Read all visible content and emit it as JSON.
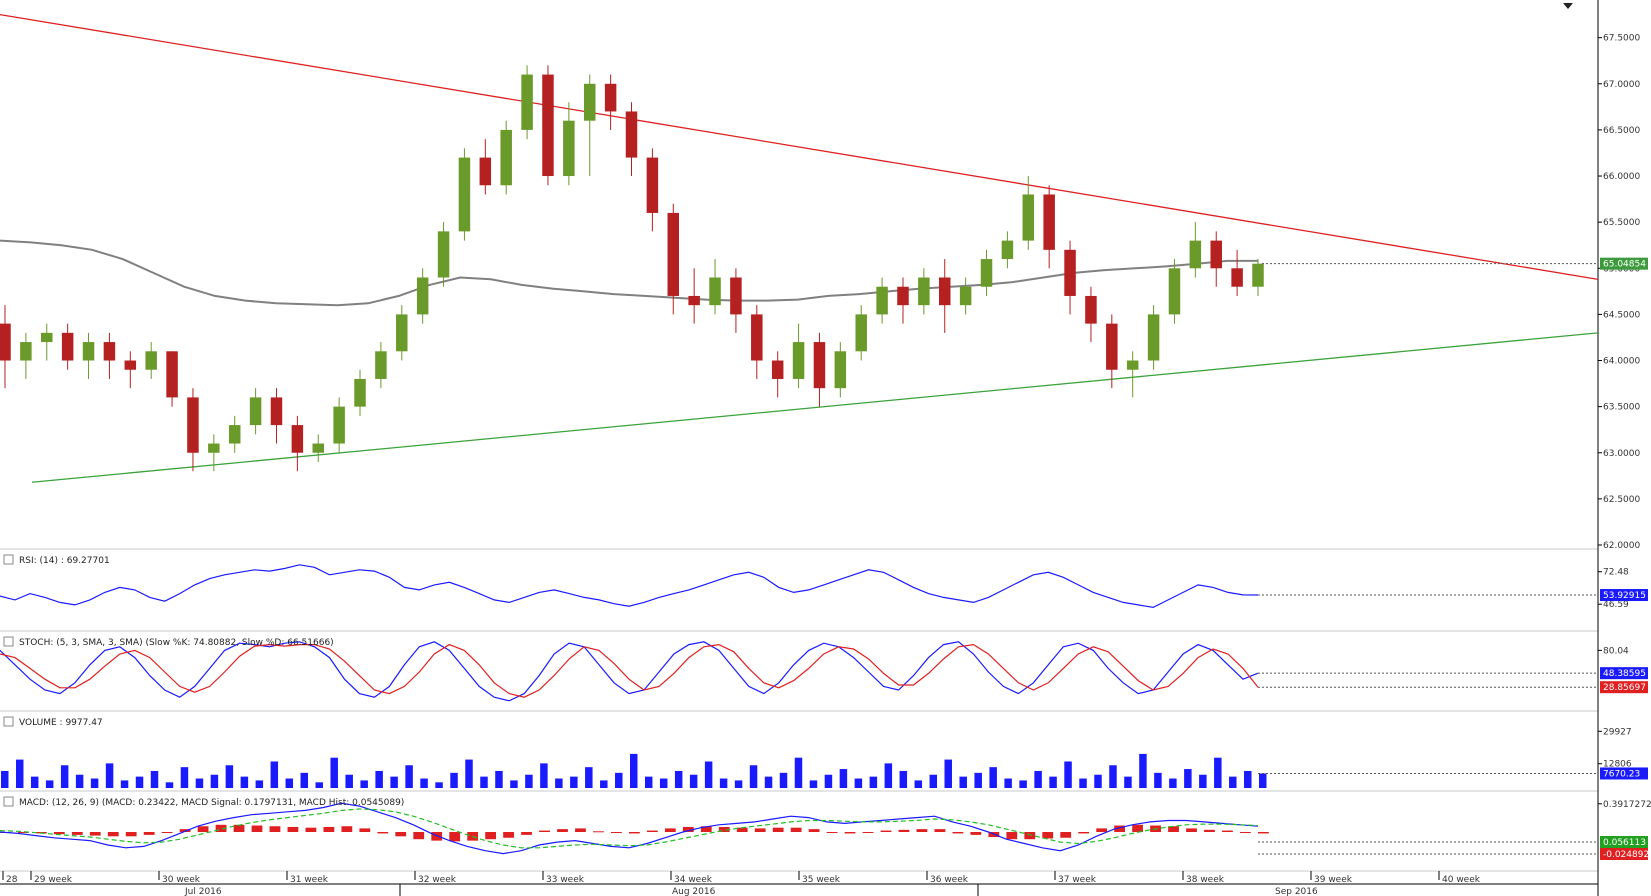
{
  "chart_data": [
    {
      "type": "candlestick",
      "pane": "price",
      "title": "",
      "ylim": [
        62.0,
        67.8
      ],
      "y_ticks": [
        "67.5000",
        "67.0000",
        "66.5000",
        "66.0000",
        "65.5000",
        "65.0000",
        "64.5000",
        "64.0000",
        "63.5000",
        "63.0000",
        "62.5000",
        "62.0000"
      ],
      "y_tick_values": [
        67.5,
        67.0,
        66.5,
        66.0,
        65.5,
        65.0,
        64.5,
        64.0,
        63.5,
        63.0,
        62.5,
        62.0
      ],
      "last_value_label": "65.04854",
      "last_value_color": "#3c9a3c",
      "up_color": "#6a9a2a",
      "down_color": "#b52020",
      "trendline_resistance": {
        "color": "#e02020",
        "points": [
          [
            0,
            67.75
          ],
          [
            250,
            64.88
          ]
        ]
      },
      "trendline_support": {
        "color": "#3aa33a",
        "points": [
          [
            5,
            62.68
          ],
          [
            250,
            64.3
          ]
        ]
      },
      "moving_average": {
        "color": "#808080",
        "values": [
          65.3,
          65.28,
          65.25,
          65.2,
          65.1,
          64.95,
          64.8,
          64.7,
          64.65,
          64.62,
          64.61,
          64.6,
          64.62,
          64.7,
          64.82,
          64.9,
          64.88,
          64.82,
          64.78,
          64.75,
          64.72,
          64.7,
          64.68,
          64.66,
          64.65,
          64.65,
          64.66,
          64.7,
          64.72,
          64.75,
          64.78,
          64.8,
          64.82,
          64.85,
          64.9,
          64.95,
          64.98,
          65.0,
          65.02,
          65.05,
          65.08,
          65.08
        ]
      },
      "candles": [
        [
          64.4,
          64.0,
          64.6,
          63.7
        ],
        [
          64.0,
          64.2,
          64.3,
          63.8
        ],
        [
          64.2,
          64.3,
          64.4,
          64.0
        ],
        [
          64.3,
          64.0,
          64.4,
          63.9
        ],
        [
          64.0,
          64.2,
          64.3,
          63.8
        ],
        [
          64.2,
          64.0,
          64.3,
          63.8
        ],
        [
          64.0,
          63.9,
          64.1,
          63.7
        ],
        [
          63.9,
          64.1,
          64.2,
          63.8
        ],
        [
          64.1,
          63.6,
          64.1,
          63.5
        ],
        [
          63.6,
          63.0,
          63.7,
          62.8
        ],
        [
          63.0,
          63.1,
          63.2,
          62.8
        ],
        [
          63.1,
          63.3,
          63.4,
          63.0
        ],
        [
          63.3,
          63.6,
          63.7,
          63.2
        ],
        [
          63.6,
          63.3,
          63.7,
          63.1
        ],
        [
          63.3,
          63.0,
          63.4,
          62.8
        ],
        [
          63.0,
          63.1,
          63.2,
          62.9
        ],
        [
          63.1,
          63.5,
          63.6,
          63.0
        ],
        [
          63.5,
          63.8,
          63.9,
          63.4
        ],
        [
          63.8,
          64.1,
          64.2,
          63.7
        ],
        [
          64.1,
          64.5,
          64.6,
          64.0
        ],
        [
          64.5,
          64.9,
          65.0,
          64.4
        ],
        [
          64.9,
          65.4,
          65.5,
          64.8
        ],
        [
          65.4,
          66.2,
          66.3,
          65.3
        ],
        [
          66.2,
          65.9,
          66.4,
          65.8
        ],
        [
          65.9,
          66.5,
          66.6,
          65.8
        ],
        [
          66.5,
          67.1,
          67.2,
          66.4
        ],
        [
          67.1,
          66.0,
          67.2,
          65.9
        ],
        [
          66.0,
          66.6,
          66.8,
          65.9
        ],
        [
          66.6,
          67.0,
          67.1,
          66.0
        ],
        [
          67.0,
          66.7,
          67.1,
          66.5
        ],
        [
          66.7,
          66.2,
          66.8,
          66.0
        ],
        [
          66.2,
          65.6,
          66.3,
          65.4
        ],
        [
          65.6,
          64.7,
          65.7,
          64.5
        ],
        [
          64.7,
          64.6,
          65.0,
          64.4
        ],
        [
          64.6,
          64.9,
          65.1,
          64.5
        ],
        [
          64.9,
          64.5,
          65.0,
          64.3
        ],
        [
          64.5,
          64.0,
          64.6,
          63.8
        ],
        [
          64.0,
          63.8,
          64.1,
          63.6
        ],
        [
          63.8,
          64.2,
          64.4,
          63.7
        ],
        [
          64.2,
          63.7,
          64.3,
          63.5
        ],
        [
          63.7,
          64.1,
          64.2,
          63.6
        ],
        [
          64.1,
          64.5,
          64.6,
          64.0
        ],
        [
          64.5,
          64.8,
          64.9,
          64.4
        ],
        [
          64.8,
          64.6,
          64.9,
          64.4
        ],
        [
          64.6,
          64.9,
          65.0,
          64.5
        ],
        [
          64.9,
          64.6,
          65.1,
          64.3
        ],
        [
          64.6,
          64.8,
          64.9,
          64.5
        ],
        [
          64.8,
          65.1,
          65.2,
          64.7
        ],
        [
          65.1,
          65.3,
          65.4,
          65.0
        ],
        [
          65.3,
          65.8,
          66.0,
          65.2
        ],
        [
          65.8,
          65.2,
          65.9,
          65.0
        ],
        [
          65.2,
          64.7,
          65.3,
          64.5
        ],
        [
          64.7,
          64.4,
          64.8,
          64.2
        ],
        [
          64.4,
          63.9,
          64.5,
          63.7
        ],
        [
          63.9,
          64.0,
          64.1,
          63.6
        ],
        [
          64.0,
          64.5,
          64.6,
          63.9
        ],
        [
          64.5,
          65.0,
          65.1,
          64.4
        ],
        [
          65.0,
          65.3,
          65.5,
          64.9
        ],
        [
          65.3,
          65.0,
          65.4,
          64.8
        ],
        [
          65.0,
          64.8,
          65.2,
          64.7
        ],
        [
          64.8,
          65.05,
          65.1,
          64.7
        ]
      ],
      "week_ticks": [
        "28",
        "29 week",
        "30 week",
        "31 week",
        "32 week",
        "33 week",
        "34 week",
        "35 week",
        "36 week",
        "37 week",
        "38 week",
        "39 week",
        "40 week"
      ],
      "month_ticks": [
        "Jul 2016",
        "Aug 2016",
        "Sep 2016"
      ]
    },
    {
      "type": "line",
      "pane": "rsi",
      "legend": "RSI: (14) : 69.27701",
      "ylim": [
        30,
        85
      ],
      "y_ticks": [
        "72.48",
        "46.59"
      ],
      "y_tick_values": [
        72.48,
        46.59
      ],
      "last_value_label": "53.92915",
      "line_color": "#1a1aff",
      "values": [
        53,
        50,
        55,
        52,
        48,
        46,
        50,
        56,
        60,
        58,
        52,
        49,
        55,
        62,
        67,
        70,
        72,
        74,
        73,
        75,
        78,
        76,
        70,
        72,
        74,
        73,
        68,
        60,
        58,
        62,
        64,
        60,
        55,
        50,
        48,
        52,
        56,
        58,
        55,
        52,
        50,
        47,
        45,
        48,
        52,
        55,
        58,
        62,
        66,
        70,
        72,
        68,
        60,
        56,
        58,
        62,
        66,
        70,
        74,
        72,
        66,
        60,
        55,
        52,
        50,
        48,
        52,
        58,
        64,
        70,
        72,
        68,
        62,
        56,
        52,
        48,
        46,
        44,
        50,
        56,
        62,
        60,
        56,
        54,
        53.9
      ]
    },
    {
      "type": "line",
      "pane": "stoch",
      "legend": "STOCH: (5, 3, SMA, 3, SMA) (Slow %K: 74.80882, Slow %D: 66.51666)",
      "ylim": [
        0,
        100
      ],
      "y_ticks": [
        "80.04"
      ],
      "y_tick_values": [
        80.04
      ],
      "last_value_labels": [
        "48.38595",
        "28.85697"
      ],
      "series": [
        {
          "name": "Slow %K",
          "color": "#1a1aff",
          "values": [
            80,
            60,
            40,
            25,
            20,
            35,
            60,
            80,
            85,
            70,
            45,
            25,
            15,
            30,
            55,
            80,
            90,
            88,
            85,
            90,
            92,
            85,
            70,
            40,
            20,
            15,
            30,
            60,
            85,
            92,
            80,
            55,
            30,
            15,
            10,
            20,
            45,
            75,
            90,
            85,
            60,
            35,
            20,
            25,
            50,
            75,
            88,
            92,
            80,
            55,
            30,
            20,
            35,
            60,
            80,
            90,
            85,
            70,
            50,
            30,
            25,
            45,
            70,
            88,
            92,
            75,
            50,
            30,
            20,
            35,
            60,
            85,
            90,
            80,
            55,
            35,
            20,
            25,
            50,
            75,
            88,
            80,
            60,
            40,
            48.4
          ]
        },
        {
          "name": "Slow %D",
          "color": "#e02020",
          "values": [
            75,
            70,
            55,
            40,
            28,
            28,
            40,
            58,
            75,
            80,
            70,
            50,
            30,
            22,
            30,
            50,
            72,
            86,
            88,
            86,
            88,
            88,
            82,
            65,
            45,
            25,
            20,
            30,
            50,
            75,
            88,
            80,
            60,
            35,
            20,
            15,
            25,
            45,
            68,
            85,
            80,
            62,
            40,
            25,
            30,
            48,
            70,
            85,
            88,
            78,
            55,
            35,
            28,
            38,
            55,
            75,
            85,
            82,
            68,
            48,
            32,
            32,
            48,
            68,
            85,
            88,
            75,
            55,
            35,
            25,
            35,
            55,
            75,
            85,
            78,
            58,
            38,
            25,
            30,
            48,
            70,
            82,
            75,
            55,
            28.9
          ]
        }
      ]
    },
    {
      "type": "bar",
      "pane": "volume",
      "legend": "VOLUME : 9977.47",
      "ylim": [
        0,
        38000
      ],
      "y_ticks": [
        "29927",
        "12806"
      ],
      "y_tick_values": [
        29927,
        12806
      ],
      "last_value_label": "7670.23",
      "bar_color": "#1a1aff",
      "values": [
        9000,
        15000,
        6000,
        4000,
        12000,
        7000,
        5000,
        13000,
        4000,
        6000,
        9000,
        3000,
        11000,
        5000,
        7000,
        12000,
        6000,
        4000,
        14000,
        5000,
        8000,
        3000,
        16000,
        7000,
        4000,
        9000,
        6000,
        12000,
        5000,
        3000,
        8000,
        15000,
        6000,
        9000,
        4000,
        7000,
        13000,
        5000,
        6000,
        11000,
        4000,
        8000,
        18000,
        6000,
        5000,
        9000,
        7000,
        14000,
        5000,
        4000,
        12000,
        6000,
        8000,
        16000,
        4000,
        7000,
        10000,
        5000,
        6000,
        13000,
        9000,
        4000,
        7000,
        15000,
        6000,
        8000,
        11000,
        5000,
        4000,
        9000,
        6000,
        14000,
        5000,
        7000,
        12000,
        6000,
        18000,
        8000,
        5000,
        10000,
        7000,
        16000,
        6000,
        9000,
        7670
      ]
    },
    {
      "type": "line+bar",
      "pane": "macd",
      "legend": "MACD: (12, 26, 9) (MACD: 0.23422, MACD Signal: 0.1797131, MACD Hist: 0.0545089)",
      "ylim": [
        -0.5,
        0.5
      ],
      "y_ticks": [
        "0.3917272"
      ],
      "y_tick_values": [
        0.3917272
      ],
      "last_value_labels": [
        "0.056113",
        "-0.0248929"
      ],
      "series": [
        {
          "name": "MACD",
          "color": "#1a1aff",
          "values": [
            0.0,
            -0.02,
            -0.05,
            -0.08,
            -0.1,
            -0.12,
            -0.18,
            -0.22,
            -0.2,
            -0.12,
            -0.02,
            0.08,
            0.15,
            0.2,
            0.24,
            0.26,
            0.28,
            0.3,
            0.34,
            0.4,
            0.36,
            0.28,
            0.2,
            0.1,
            -0.02,
            -0.12,
            -0.2,
            -0.26,
            -0.3,
            -0.26,
            -0.18,
            -0.14,
            -0.12,
            -0.16,
            -0.2,
            -0.22,
            -0.16,
            -0.08,
            0.0,
            0.06,
            0.1,
            0.12,
            0.14,
            0.18,
            0.22,
            0.2,
            0.14,
            0.12,
            0.14,
            0.16,
            0.18,
            0.2,
            0.22,
            0.14,
            0.08,
            0.0,
            -0.1,
            -0.16,
            -0.22,
            -0.26,
            -0.18,
            -0.06,
            0.04,
            0.1,
            0.14,
            0.16,
            0.16,
            0.14,
            0.12,
            0.1,
            0.08
          ]
        },
        {
          "name": "MACD Signal",
          "color": "#22c022",
          "values": [
            0.02,
            0.01,
            -0.01,
            -0.03,
            -0.05,
            -0.07,
            -0.1,
            -0.13,
            -0.15,
            -0.14,
            -0.1,
            -0.04,
            0.02,
            0.08,
            0.13,
            0.17,
            0.2,
            0.23,
            0.26,
            0.3,
            0.32,
            0.31,
            0.28,
            0.22,
            0.14,
            0.05,
            -0.04,
            -0.12,
            -0.18,
            -0.22,
            -0.22,
            -0.2,
            -0.18,
            -0.17,
            -0.18,
            -0.19,
            -0.18,
            -0.14,
            -0.09,
            -0.04,
            0.01,
            0.05,
            0.08,
            0.11,
            0.14,
            0.16,
            0.16,
            0.15,
            0.14,
            0.14,
            0.15,
            0.16,
            0.18,
            0.17,
            0.14,
            0.1,
            0.04,
            -0.02,
            -0.08,
            -0.14,
            -0.16,
            -0.13,
            -0.08,
            -0.02,
            0.03,
            0.07,
            0.1,
            0.11,
            0.11,
            0.1,
            0.09
          ]
        },
        {
          "name": "MACD Hist",
          "color": "#e02020",
          "values": [
            0.0,
            -0.01,
            -0.02,
            -0.03,
            -0.04,
            -0.05,
            -0.06,
            -0.06,
            -0.04,
            0.0,
            0.04,
            0.08,
            0.1,
            0.1,
            0.09,
            0.08,
            0.07,
            0.06,
            0.07,
            0.08,
            0.05,
            -0.02,
            -0.06,
            -0.1,
            -0.12,
            -0.13,
            -0.12,
            -0.1,
            -0.08,
            -0.04,
            0.02,
            0.04,
            0.05,
            0.01,
            -0.01,
            -0.02,
            0.02,
            0.05,
            0.07,
            0.08,
            0.07,
            0.06,
            0.05,
            0.06,
            0.06,
            0.04,
            0.0,
            -0.02,
            0.0,
            0.02,
            0.03,
            0.04,
            0.04,
            -0.02,
            -0.04,
            -0.07,
            -0.1,
            -0.1,
            -0.09,
            -0.08,
            -0.02,
            0.05,
            0.09,
            0.1,
            0.09,
            0.08,
            0.05,
            0.03,
            0.02,
            0.0,
            -0.02
          ]
        }
      ]
    }
  ],
  "colors": {
    "axis_line": "#000000",
    "grid_separator": "#c8c8c8",
    "dotted_ref": "#555555",
    "flag_blue": "#1a1aff",
    "flag_red": "#e02020",
    "flag_green": "#22a022"
  }
}
